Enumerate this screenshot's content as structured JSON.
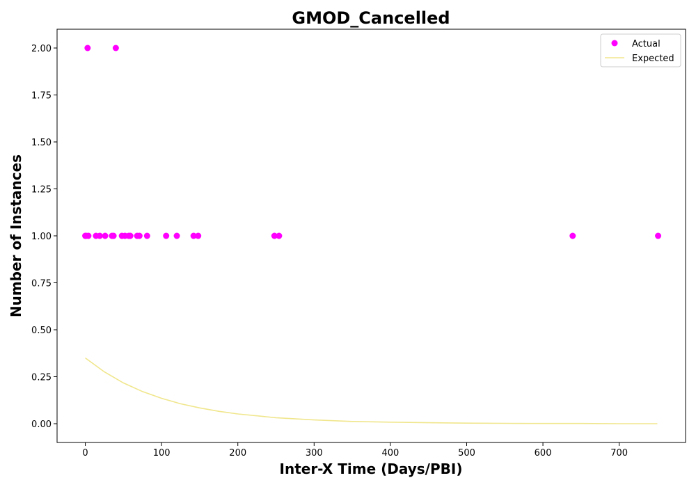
{
  "chart_data": {
    "type": "scatter",
    "title": "GMOD_Cancelled",
    "xlabel": "Inter-X Time (Days/PBI)",
    "ylabel": "Number of Instances",
    "xlim": [
      -37,
      787
    ],
    "ylim": [
      -0.1,
      2.1
    ],
    "x_ticks": [
      0,
      100,
      200,
      300,
      400,
      500,
      600,
      700
    ],
    "y_ticks": [
      0.0,
      0.25,
      0.5,
      0.75,
      1.0,
      1.25,
      1.5,
      1.75,
      2.0
    ],
    "x_tick_labels": [
      "0",
      "100",
      "200",
      "300",
      "400",
      "500",
      "600",
      "700"
    ],
    "y_tick_labels": [
      "0.00",
      "0.25",
      "0.50",
      "0.75",
      "1.00",
      "1.25",
      "1.50",
      "1.75",
      "2.00"
    ],
    "grid": false,
    "legend_position": "top-right",
    "series": [
      {
        "name": "Actual",
        "kind": "scatter",
        "color": "#ff00ff",
        "points": [
          [
            3,
            2
          ],
          [
            40,
            2
          ],
          [
            0,
            1
          ],
          [
            1,
            1
          ],
          [
            4,
            1
          ],
          [
            14,
            1
          ],
          [
            19,
            1
          ],
          [
            26,
            1
          ],
          [
            35,
            1
          ],
          [
            37,
            1
          ],
          [
            48,
            1
          ],
          [
            52,
            1
          ],
          [
            57,
            1
          ],
          [
            59,
            1
          ],
          [
            68,
            1
          ],
          [
            71,
            1
          ],
          [
            81,
            1
          ],
          [
            106,
            1
          ],
          [
            120,
            1
          ],
          [
            142,
            1
          ],
          [
            148,
            1
          ],
          [
            248,
            1
          ],
          [
            254,
            1
          ],
          [
            639,
            1
          ],
          [
            751,
            1
          ]
        ]
      },
      {
        "name": "Expected",
        "kind": "line",
        "color": "#f0e68c",
        "points": [
          [
            0,
            0.35
          ],
          [
            25,
            0.276
          ],
          [
            50,
            0.217
          ],
          [
            75,
            0.171
          ],
          [
            100,
            0.135
          ],
          [
            125,
            0.106
          ],
          [
            150,
            0.084
          ],
          [
            175,
            0.066
          ],
          [
            200,
            0.052
          ],
          [
            250,
            0.032
          ],
          [
            300,
            0.02
          ],
          [
            350,
            0.012
          ],
          [
            400,
            0.008
          ],
          [
            450,
            0.005
          ],
          [
            500,
            0.003
          ],
          [
            550,
            0.002
          ],
          [
            600,
            0.001
          ],
          [
            650,
            0.001
          ],
          [
            700,
            0.0
          ],
          [
            750,
            0.0
          ]
        ]
      }
    ]
  }
}
